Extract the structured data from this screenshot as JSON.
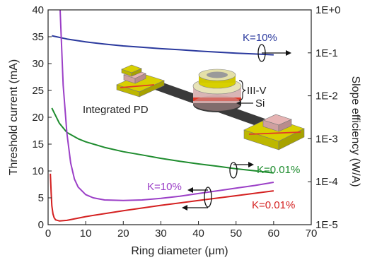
{
  "chart_data": {
    "type": "line",
    "xlabel": "Ring diameter (μm)",
    "ylabel_left": "Threshold current (mA)",
    "ylabel_right": "Slope efficiency (W/A)",
    "xlim": [
      0,
      70
    ],
    "ylim_left": [
      0,
      40
    ],
    "ylim_right": [
      1e-05,
      1
    ],
    "y_right_scale": "log",
    "x_ticks": [
      "0",
      "10",
      "20",
      "30",
      "40",
      "50",
      "60",
      "70"
    ],
    "y_left_ticks": [
      "0",
      "5",
      "10",
      "15",
      "20",
      "25",
      "30",
      "35",
      "40"
    ],
    "y_right_ticks": [
      "1E+0",
      "1E-1",
      "1E-2",
      "1E-3",
      "1E-4",
      "1E-5"
    ],
    "series": [
      {
        "name": "K=10%",
        "axis": "right",
        "color": "#2b3a9e",
        "x": [
          1,
          5,
          10,
          15,
          20,
          25,
          30,
          35,
          40,
          45,
          50,
          55,
          60
        ],
        "y": [
          0.25,
          0.21,
          0.18,
          0.16,
          0.145,
          0.135,
          0.125,
          0.118,
          0.11,
          0.104,
          0.098,
          0.094,
          0.09
        ]
      },
      {
        "name": "K=0.01%",
        "axis": "right",
        "color": "#1e8c2e",
        "x": [
          1,
          3,
          5,
          8,
          10,
          15,
          20,
          25,
          30,
          35,
          40,
          45,
          50,
          55,
          60
        ],
        "y": [
          0.0052,
          0.0023,
          0.0014,
          0.001,
          0.00085,
          0.00063,
          0.0005,
          0.00042,
          0.00035,
          0.0003,
          0.00026,
          0.00023,
          0.0002,
          0.00018,
          0.00016
        ]
      },
      {
        "name": "K=10%",
        "axis": "left",
        "color": "#9b3fc7",
        "x": [
          3.2,
          4,
          5,
          6,
          7,
          8,
          10,
          12,
          15,
          20,
          25,
          30,
          35,
          40,
          45,
          50,
          55,
          60
        ],
        "y": [
          40,
          26,
          17,
          11.5,
          8.5,
          7,
          5.6,
          5,
          4.6,
          4.5,
          4.6,
          4.9,
          5.3,
          5.8,
          6.3,
          6.8,
          7.3,
          7.9
        ]
      },
      {
        "name": "K=0.01%",
        "axis": "left",
        "color": "#d42020",
        "x": [
          0.6,
          0.8,
          1,
          1.3,
          1.6,
          2,
          3,
          5,
          10,
          20,
          30,
          40,
          50,
          60
        ],
        "y": [
          9.5,
          6,
          3.5,
          2,
          1.3,
          0.9,
          0.7,
          0.8,
          1.5,
          2.6,
          3.6,
          4.5,
          5.4,
          6.3
        ]
      }
    ],
    "annotations": [
      {
        "text": "K=10%",
        "color": "#2b3a9e"
      },
      {
        "text": "K=0.01%",
        "color": "#1e8c2e"
      },
      {
        "text": "K=10%",
        "color": "#9b3fc7"
      },
      {
        "text": "K=0.01%",
        "color": "#d42020"
      },
      {
        "text": "Integrated PD",
        "color": "#222222"
      },
      {
        "text": "III-V",
        "color": "#222222"
      },
      {
        "text": "Si",
        "color": "#222222"
      }
    ]
  }
}
